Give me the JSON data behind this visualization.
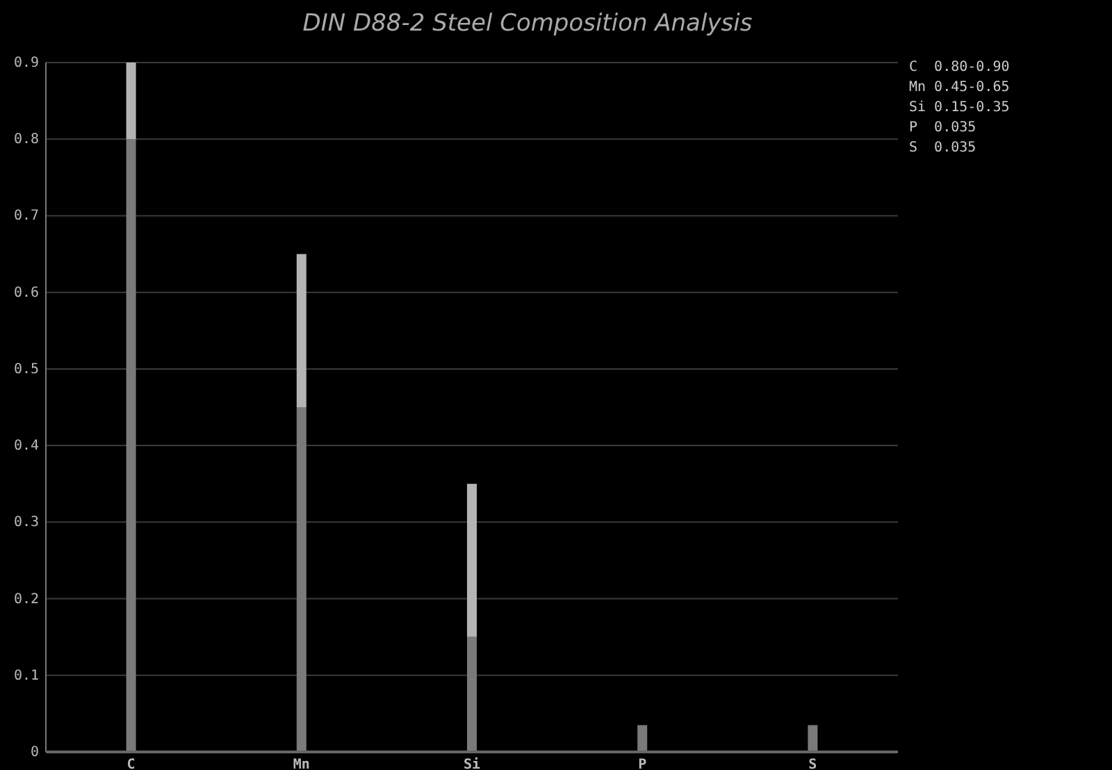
{
  "chart_data": {
    "type": "bar",
    "title": "DIN D88-2 Steel Composition Analysis",
    "categories": [
      "C",
      "Mn",
      "Si",
      "P",
      "S"
    ],
    "stacked": true,
    "series": [
      {
        "color": "#7a7a7a",
        "values": [
          0.8,
          0.45,
          0.15,
          0.035,
          0.035
        ]
      },
      {
        "color": "#b4b4b4",
        "values": [
          0.1,
          0.2,
          0.2,
          null,
          null
        ]
      }
    ],
    "ylim": [
      0,
      0.9
    ],
    "yticks": [
      0,
      0.1,
      0.2,
      0.3,
      0.4,
      0.5,
      0.6,
      0.7,
      0.8,
      0.9
    ],
    "grid": "y",
    "annotations": [
      "C  0.80-0.90",
      "Mn 0.45-0.65",
      "Si 0.15-0.35",
      "P  0.035",
      "S  0.035"
    ]
  }
}
